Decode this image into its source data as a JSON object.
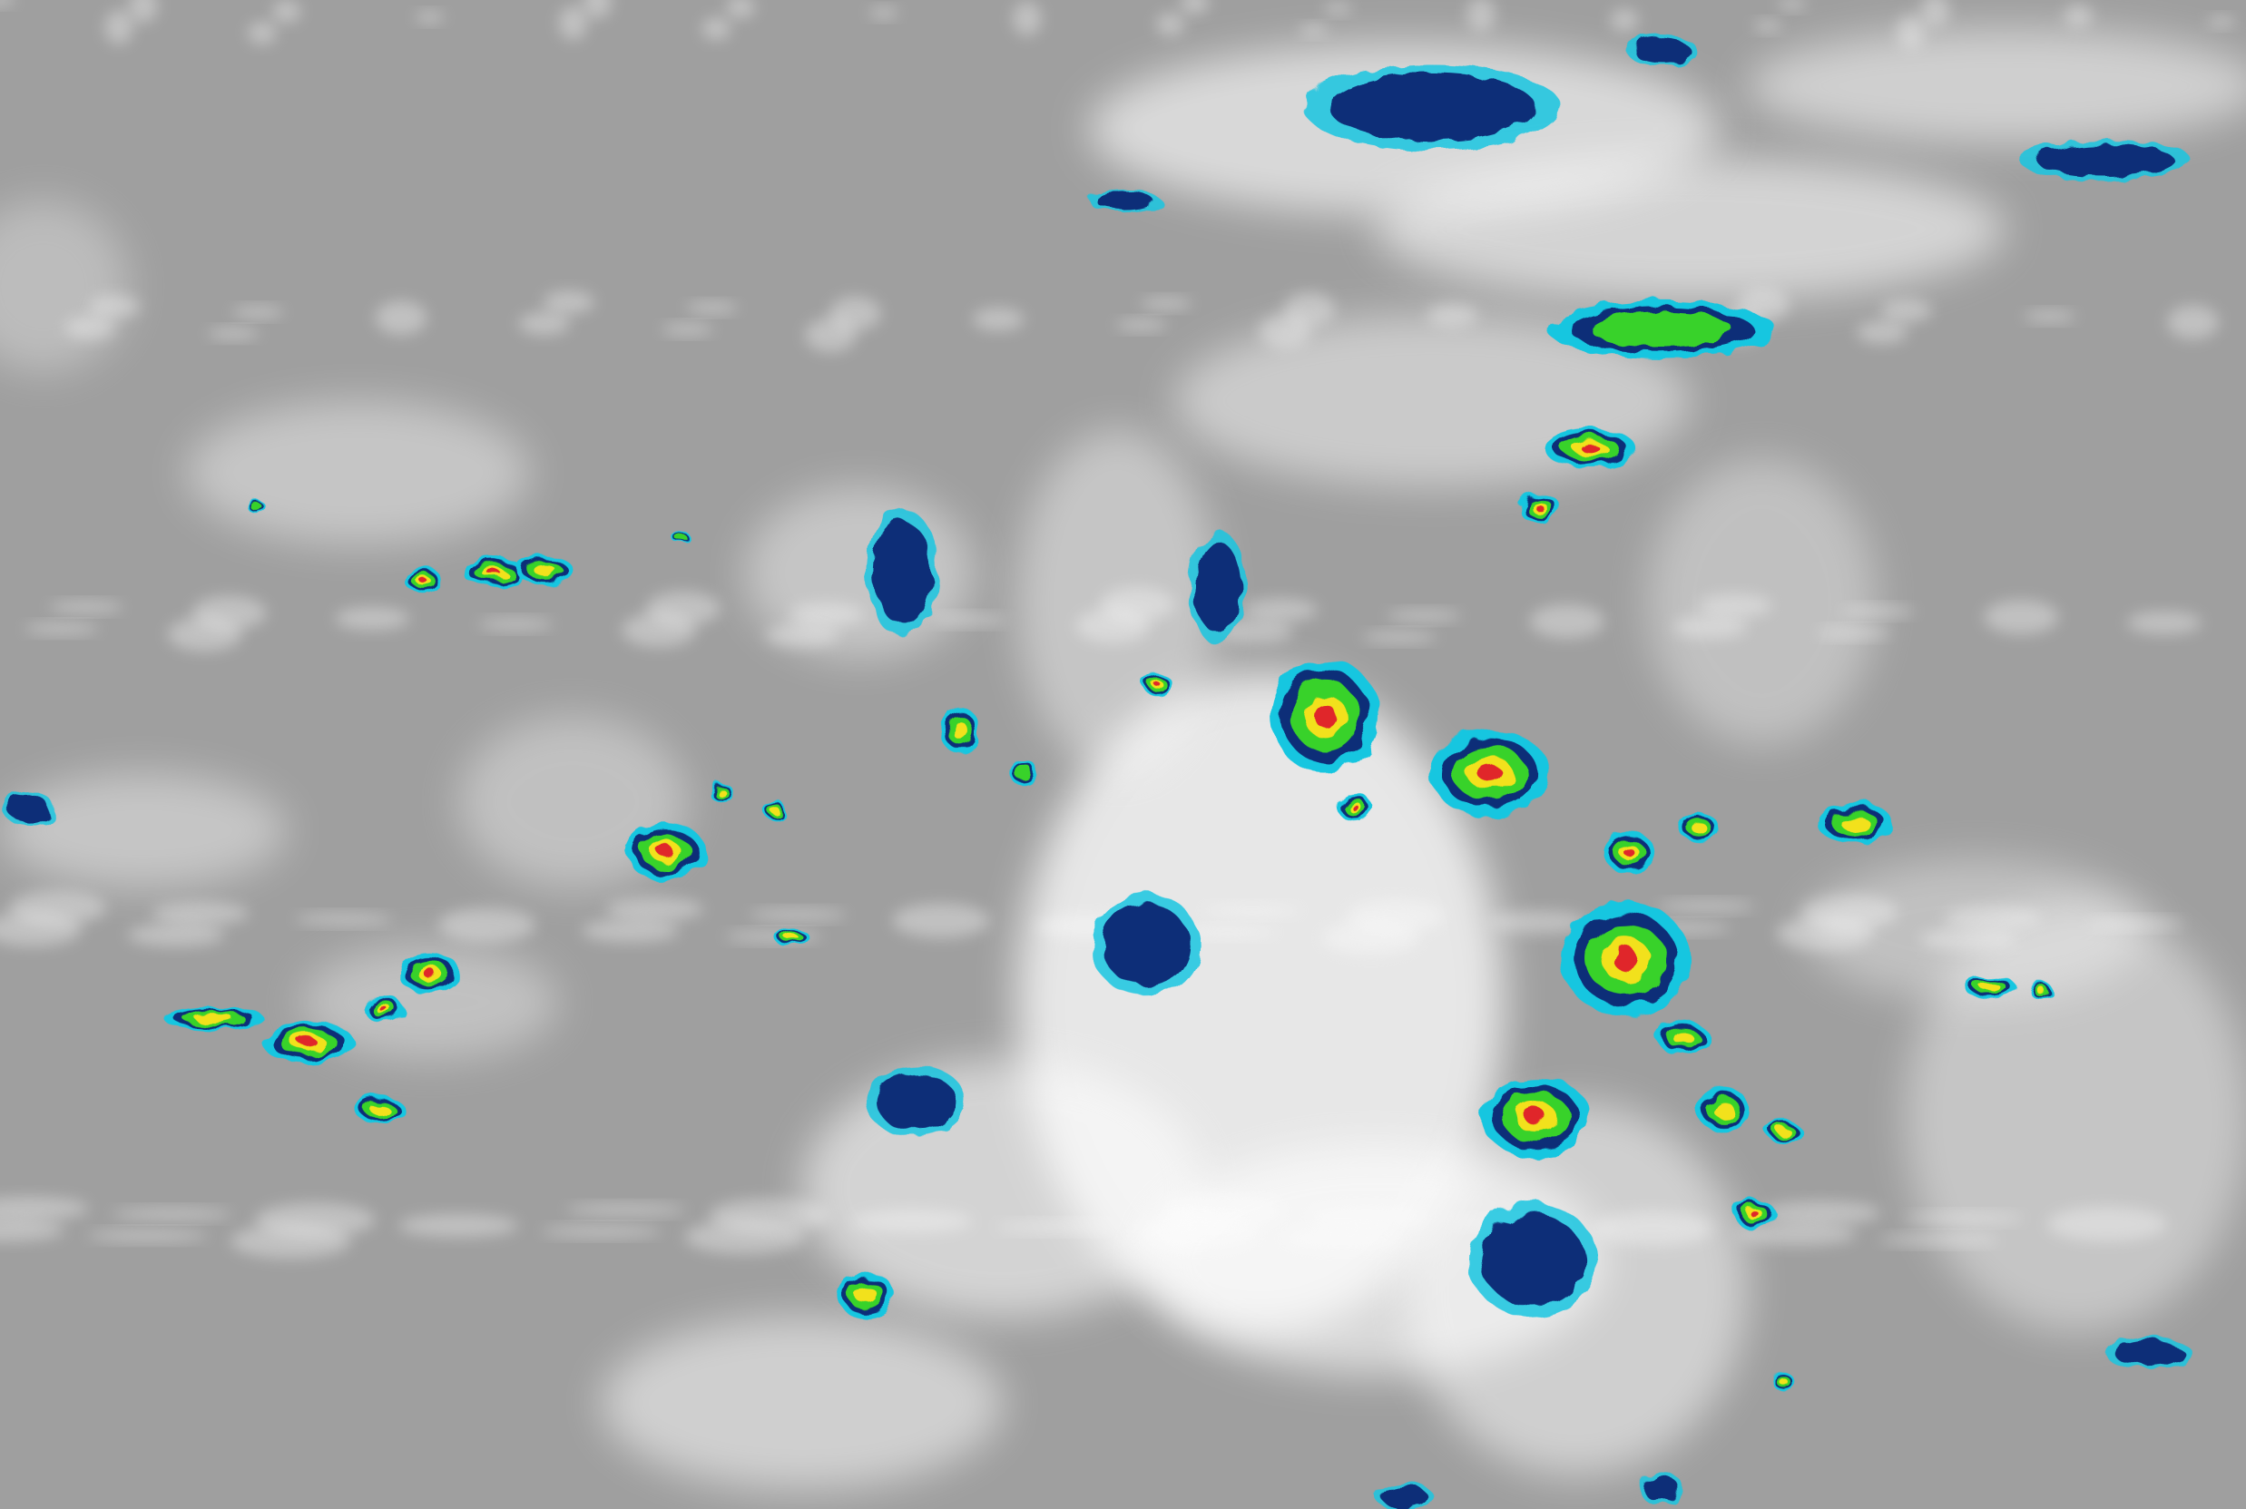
{
  "image": {
    "kind": "infrared satellite imagery, enhanced color",
    "colors": {
      "background": "#9f9f9f",
      "cloud": "#ffffff",
      "cold_navy": "#0b2f78",
      "cold_cyan": "#17c6e0",
      "green": "#39d22a",
      "yellow": "#f2e11a",
      "red": "#e0262a"
    }
  }
}
